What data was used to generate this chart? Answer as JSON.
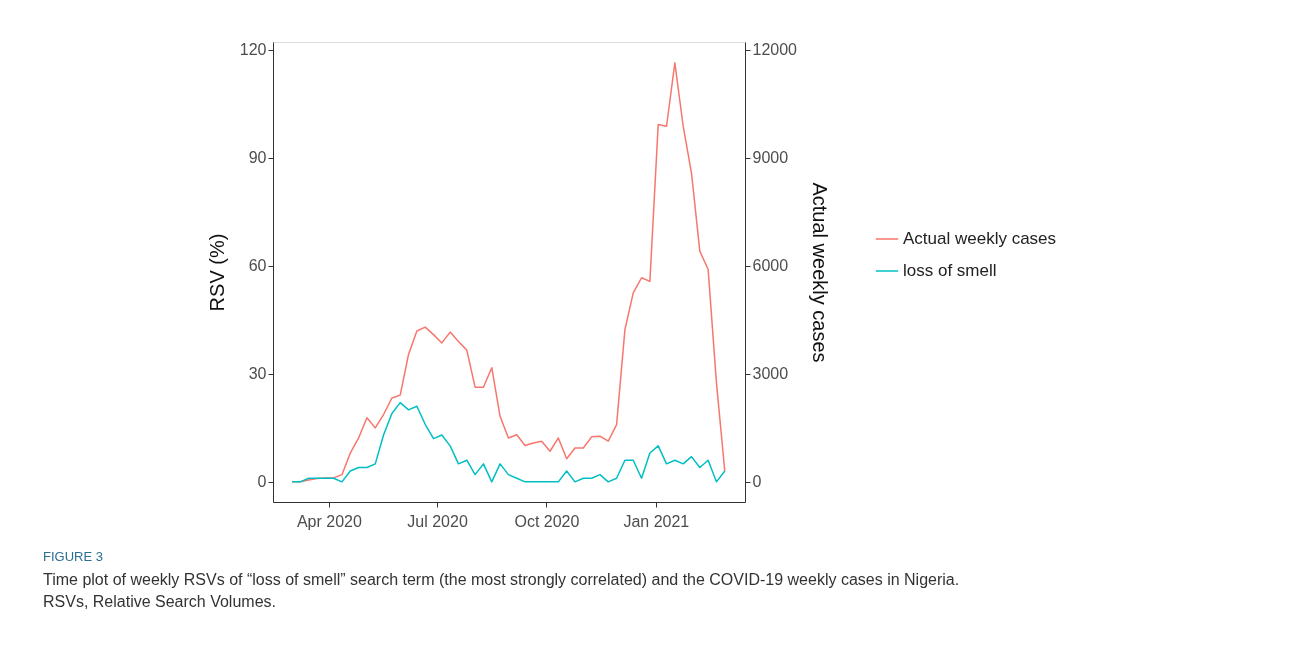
{
  "chart_data": {
    "type": "line",
    "x": [
      "2020-03-01",
      "2020-03-08",
      "2020-03-15",
      "2020-03-22",
      "2020-03-29",
      "2020-04-05",
      "2020-04-12",
      "2020-04-19",
      "2020-04-26",
      "2020-05-03",
      "2020-05-10",
      "2020-05-17",
      "2020-05-24",
      "2020-05-31",
      "2020-06-07",
      "2020-06-14",
      "2020-06-21",
      "2020-06-28",
      "2020-07-05",
      "2020-07-12",
      "2020-07-19",
      "2020-07-26",
      "2020-08-02",
      "2020-08-09",
      "2020-08-16",
      "2020-08-23",
      "2020-08-30",
      "2020-09-06",
      "2020-09-13",
      "2020-09-20",
      "2020-09-27",
      "2020-10-04",
      "2020-10-11",
      "2020-10-18",
      "2020-10-25",
      "2020-11-01",
      "2020-11-08",
      "2020-11-15",
      "2020-11-22",
      "2020-11-29",
      "2020-12-06",
      "2020-12-13",
      "2020-12-20",
      "2020-12-27",
      "2021-01-03",
      "2021-01-10",
      "2021-01-17",
      "2021-01-24",
      "2021-01-31",
      "2021-02-07",
      "2021-02-14",
      "2021-02-21",
      "2021-02-28"
    ],
    "series": [
      {
        "name": "Actual weekly cases",
        "color": "#f8766d",
        "axis": "y2",
        "values": [
          0,
          0,
          50,
          90,
          110,
          110,
          200,
          800,
          1220,
          1780,
          1500,
          1870,
          2330,
          2410,
          3540,
          4190,
          4300,
          4090,
          3860,
          4160,
          3900,
          3660,
          2630,
          2630,
          3170,
          1820,
          1220,
          1310,
          1010,
          1080,
          1130,
          850,
          1220,
          640,
          940,
          940,
          1250,
          1270,
          1130,
          1590,
          4230,
          5250,
          5670,
          5570,
          9930,
          9880,
          11640,
          9880,
          8580,
          6410,
          5900,
          2750,
          300
        ]
      },
      {
        "name": "loss of smell",
        "color": "#00bfc4",
        "values": [
          0,
          0,
          1,
          1,
          1,
          1,
          0,
          3,
          4,
          4,
          5,
          13,
          19,
          22,
          20,
          21,
          16,
          12,
          13,
          10,
          5,
          6,
          2,
          5,
          0,
          5,
          2,
          1,
          0,
          0,
          0,
          0,
          0,
          3,
          0,
          1,
          1,
          2,
          0,
          1,
          6,
          6,
          1,
          8,
          10,
          5,
          6,
          5,
          7,
          4,
          6,
          0,
          3
        ]
      }
    ],
    "ylabel": "RSV (%)",
    "y2label": "Actual weekly cases",
    "xlim": [
      "2020-02-14",
      "2021-03-17"
    ],
    "xticks": [
      {
        "value": "2020-04-01",
        "label": "Apr 2020"
      },
      {
        "value": "2020-07-01",
        "label": "Jul 2020"
      },
      {
        "value": "2020-10-01",
        "label": "Oct 2020"
      },
      {
        "value": "2021-01-01",
        "label": "Jan 2021"
      }
    ],
    "ylim": [
      -5.6,
      122.2
    ],
    "yticks": [
      0,
      30,
      60,
      90,
      120
    ],
    "y2lim": [
      -560,
      12220
    ],
    "y2ticks": [
      0,
      3000,
      6000,
      9000,
      12000
    ],
    "grid": false,
    "legend": "right",
    "annotations": [
      "FIGURE 3",
      "Time plot of weekly RSVs of “loss of smell” search term (the most strongly correlated) and the COVID-19 weekly cases in Nigeria. RSVs, Relative Search Volumes."
    ]
  }
}
